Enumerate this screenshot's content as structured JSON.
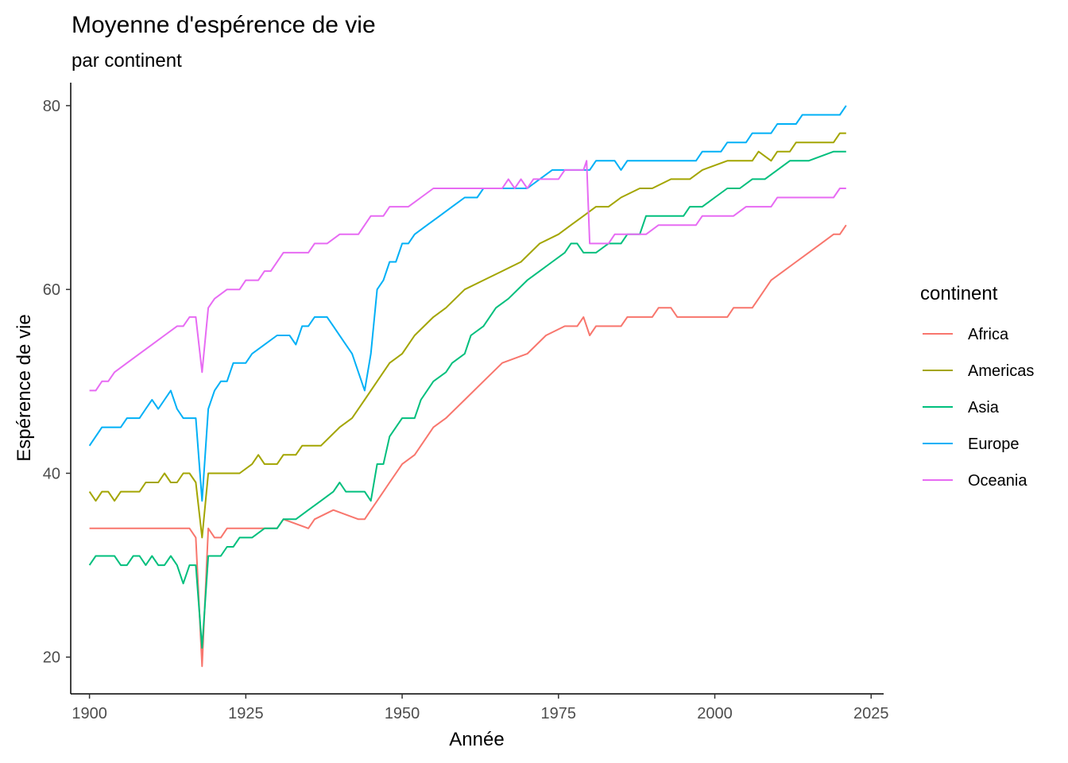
{
  "chart_data": {
    "type": "line",
    "title": "Moyenne d'espérence de vie",
    "subtitle": "par continent",
    "xlabel": "Année",
    "ylabel": "Espérence de vie",
    "xlim": [
      1897,
      2027
    ],
    "ylim": [
      16,
      82.5
    ],
    "x_ticks": [
      1900,
      1925,
      1950,
      1975,
      2000,
      2025
    ],
    "y_ticks": [
      20,
      40,
      60,
      80
    ],
    "grid": false,
    "legend": {
      "title": "continent",
      "position": "right"
    },
    "series": [
      {
        "name": "Africa",
        "color": "#F8766D",
        "points": [
          [
            1900,
            34
          ],
          [
            1916,
            34
          ],
          [
            1917,
            33
          ],
          [
            1918,
            19
          ],
          [
            1919,
            34
          ],
          [
            1920,
            33
          ],
          [
            1921,
            33
          ],
          [
            1922,
            34
          ],
          [
            1930,
            34
          ],
          [
            1931,
            35
          ],
          [
            1935,
            34
          ],
          [
            1936,
            35
          ],
          [
            1939,
            36
          ],
          [
            1943,
            35
          ],
          [
            1944,
            35
          ],
          [
            1945,
            36
          ],
          [
            1946,
            37
          ],
          [
            1947,
            38
          ],
          [
            1948,
            39
          ],
          [
            1950,
            41
          ],
          [
            1952,
            42
          ],
          [
            1955,
            45
          ],
          [
            1957,
            46
          ],
          [
            1960,
            48
          ],
          [
            1963,
            50
          ],
          [
            1966,
            52
          ],
          [
            1970,
            53
          ],
          [
            1973,
            55
          ],
          [
            1976,
            56
          ],
          [
            1978,
            56
          ],
          [
            1979,
            57
          ],
          [
            1980,
            55
          ],
          [
            1981,
            56
          ],
          [
            1985,
            56
          ],
          [
            1986,
            57
          ],
          [
            1990,
            57
          ],
          [
            1991,
            58
          ],
          [
            1993,
            58
          ],
          [
            1994,
            57
          ],
          [
            2002,
            57
          ],
          [
            2003,
            58
          ],
          [
            2006,
            58
          ],
          [
            2007,
            59
          ],
          [
            2009,
            61
          ],
          [
            2011,
            62
          ],
          [
            2013,
            63
          ],
          [
            2015,
            64
          ],
          [
            2017,
            65
          ],
          [
            2019,
            66
          ],
          [
            2020,
            66
          ],
          [
            2021,
            67
          ]
        ]
      },
      {
        "name": "Americas",
        "color": "#A3A500",
        "points": [
          [
            1900,
            38
          ],
          [
            1901,
            37
          ],
          [
            1902,
            38
          ],
          [
            1903,
            38
          ],
          [
            1904,
            37
          ],
          [
            1905,
            38
          ],
          [
            1908,
            38
          ],
          [
            1909,
            39
          ],
          [
            1911,
            39
          ],
          [
            1912,
            40
          ],
          [
            1913,
            39
          ],
          [
            1914,
            39
          ],
          [
            1915,
            40
          ],
          [
            1916,
            40
          ],
          [
            1917,
            39
          ],
          [
            1918,
            33
          ],
          [
            1919,
            40
          ],
          [
            1924,
            40
          ],
          [
            1926,
            41
          ],
          [
            1927,
            42
          ],
          [
            1928,
            41
          ],
          [
            1930,
            41
          ],
          [
            1931,
            42
          ],
          [
            1933,
            42
          ],
          [
            1934,
            43
          ],
          [
            1937,
            43
          ],
          [
            1940,
            45
          ],
          [
            1942,
            46
          ],
          [
            1944,
            48
          ],
          [
            1946,
            50
          ],
          [
            1948,
            52
          ],
          [
            1950,
            53
          ],
          [
            1952,
            55
          ],
          [
            1955,
            57
          ],
          [
            1957,
            58
          ],
          [
            1960,
            60
          ],
          [
            1963,
            61
          ],
          [
            1966,
            62
          ],
          [
            1969,
            63
          ],
          [
            1972,
            65
          ],
          [
            1975,
            66
          ],
          [
            1977,
            67
          ],
          [
            1979,
            68
          ],
          [
            1981,
            69
          ],
          [
            1983,
            69
          ],
          [
            1985,
            70
          ],
          [
            1988,
            71
          ],
          [
            1990,
            71
          ],
          [
            1993,
            72
          ],
          [
            1996,
            72
          ],
          [
            1998,
            73
          ],
          [
            2002,
            74
          ],
          [
            2006,
            74
          ],
          [
            2007,
            75
          ],
          [
            2009,
            74
          ],
          [
            2010,
            75
          ],
          [
            2012,
            75
          ],
          [
            2013,
            76
          ],
          [
            2015,
            76
          ],
          [
            2019,
            76
          ],
          [
            2020,
            77
          ],
          [
            2021,
            77
          ]
        ]
      },
      {
        "name": "Asia",
        "color": "#00BF7D",
        "points": [
          [
            1900,
            30
          ],
          [
            1901,
            31
          ],
          [
            1904,
            31
          ],
          [
            1905,
            30
          ],
          [
            1906,
            30
          ],
          [
            1907,
            31
          ],
          [
            1908,
            31
          ],
          [
            1909,
            30
          ],
          [
            1910,
            31
          ],
          [
            1911,
            30
          ],
          [
            1912,
            30
          ],
          [
            1913,
            31
          ],
          [
            1914,
            30
          ],
          [
            1915,
            28
          ],
          [
            1916,
            30
          ],
          [
            1917,
            30
          ],
          [
            1918,
            21
          ],
          [
            1919,
            31
          ],
          [
            1921,
            31
          ],
          [
            1922,
            32
          ],
          [
            1923,
            32
          ],
          [
            1924,
            33
          ],
          [
            1926,
            33
          ],
          [
            1928,
            34
          ],
          [
            1930,
            34
          ],
          [
            1931,
            35
          ],
          [
            1933,
            35
          ],
          [
            1935,
            36
          ],
          [
            1937,
            37
          ],
          [
            1939,
            38
          ],
          [
            1940,
            39
          ],
          [
            1941,
            38
          ],
          [
            1943,
            38
          ],
          [
            1944,
            38
          ],
          [
            1945,
            37
          ],
          [
            1946,
            41
          ],
          [
            1947,
            41
          ],
          [
            1948,
            44
          ],
          [
            1950,
            46
          ],
          [
            1952,
            46
          ],
          [
            1953,
            48
          ],
          [
            1955,
            50
          ],
          [
            1957,
            51
          ],
          [
            1958,
            52
          ],
          [
            1960,
            53
          ],
          [
            1961,
            55
          ],
          [
            1963,
            56
          ],
          [
            1965,
            58
          ],
          [
            1967,
            59
          ],
          [
            1970,
            61
          ],
          [
            1972,
            62
          ],
          [
            1974,
            63
          ],
          [
            1976,
            64
          ],
          [
            1977,
            65
          ],
          [
            1978,
            65
          ],
          [
            1979,
            64
          ],
          [
            1981,
            64
          ],
          [
            1983,
            65
          ],
          [
            1985,
            65
          ],
          [
            1986,
            66
          ],
          [
            1988,
            66
          ],
          [
            1989,
            68
          ],
          [
            1995,
            68
          ],
          [
            1996,
            69
          ],
          [
            1998,
            69
          ],
          [
            2000,
            70
          ],
          [
            2002,
            71
          ],
          [
            2004,
            71
          ],
          [
            2006,
            72
          ],
          [
            2008,
            72
          ],
          [
            2010,
            73
          ],
          [
            2012,
            74
          ],
          [
            2015,
            74
          ],
          [
            2019,
            75
          ],
          [
            2021,
            75
          ]
        ]
      },
      {
        "name": "Europe",
        "color": "#00B0F6",
        "points": [
          [
            1900,
            43
          ],
          [
            1902,
            45
          ],
          [
            1905,
            45
          ],
          [
            1906,
            46
          ],
          [
            1907,
            46
          ],
          [
            1908,
            46
          ],
          [
            1909,
            47
          ],
          [
            1910,
            48
          ],
          [
            1911,
            47
          ],
          [
            1912,
            48
          ],
          [
            1913,
            49
          ],
          [
            1914,
            47
          ],
          [
            1915,
            46
          ],
          [
            1917,
            46
          ],
          [
            1918,
            37
          ],
          [
            1919,
            47
          ],
          [
            1920,
            49
          ],
          [
            1921,
            50
          ],
          [
            1922,
            50
          ],
          [
            1923,
            52
          ],
          [
            1925,
            52
          ],
          [
            1926,
            53
          ],
          [
            1928,
            54
          ],
          [
            1930,
            55
          ],
          [
            1932,
            55
          ],
          [
            1933,
            54
          ],
          [
            1934,
            56
          ],
          [
            1935,
            56
          ],
          [
            1936,
            57
          ],
          [
            1938,
            57
          ],
          [
            1939,
            56
          ],
          [
            1941,
            54
          ],
          [
            1942,
            53
          ],
          [
            1943,
            51
          ],
          [
            1944,
            49
          ],
          [
            1945,
            53
          ],
          [
            1946,
            60
          ],
          [
            1947,
            61
          ],
          [
            1948,
            63
          ],
          [
            1949,
            63
          ],
          [
            1950,
            65
          ],
          [
            1951,
            65
          ],
          [
            1952,
            66
          ],
          [
            1954,
            67
          ],
          [
            1956,
            68
          ],
          [
            1958,
            69
          ],
          [
            1960,
            70
          ],
          [
            1962,
            70
          ],
          [
            1963,
            71
          ],
          [
            1970,
            71
          ],
          [
            1972,
            72
          ],
          [
            1974,
            73
          ],
          [
            1979,
            73
          ],
          [
            1980,
            73
          ],
          [
            1981,
            74
          ],
          [
            1984,
            74
          ],
          [
            1985,
            73
          ],
          [
            1986,
            74
          ],
          [
            1997,
            74
          ],
          [
            1998,
            75
          ],
          [
            2001,
            75
          ],
          [
            2002,
            76
          ],
          [
            2005,
            76
          ],
          [
            2006,
            77
          ],
          [
            2009,
            77
          ],
          [
            2010,
            78
          ],
          [
            2013,
            78
          ],
          [
            2014,
            79
          ],
          [
            2020,
            79
          ],
          [
            2021,
            80
          ]
        ]
      },
      {
        "name": "Oceania",
        "color": "#E76BF3",
        "points": [
          [
            1900,
            49
          ],
          [
            1901,
            49
          ],
          [
            1902,
            50
          ],
          [
            1903,
            50
          ],
          [
            1904,
            51
          ],
          [
            1906,
            52
          ],
          [
            1908,
            53
          ],
          [
            1910,
            54
          ],
          [
            1912,
            55
          ],
          [
            1914,
            56
          ],
          [
            1915,
            56
          ],
          [
            1916,
            57
          ],
          [
            1917,
            57
          ],
          [
            1918,
            51
          ],
          [
            1919,
            58
          ],
          [
            1920,
            59
          ],
          [
            1922,
            60
          ],
          [
            1924,
            60
          ],
          [
            1925,
            61
          ],
          [
            1927,
            61
          ],
          [
            1928,
            62
          ],
          [
            1929,
            62
          ],
          [
            1931,
            64
          ],
          [
            1935,
            64
          ],
          [
            1936,
            65
          ],
          [
            1938,
            65
          ],
          [
            1940,
            66
          ],
          [
            1943,
            66
          ],
          [
            1945,
            68
          ],
          [
            1947,
            68
          ],
          [
            1948,
            69
          ],
          [
            1951,
            69
          ],
          [
            1953,
            70
          ],
          [
            1955,
            71
          ],
          [
            1966,
            71
          ],
          [
            1967,
            72
          ],
          [
            1968,
            71
          ],
          [
            1969,
            72
          ],
          [
            1970,
            71
          ],
          [
            1971,
            72
          ],
          [
            1975,
            72
          ],
          [
            1976,
            73
          ],
          [
            1979,
            73
          ],
          [
            1979.5,
            74
          ],
          [
            1980,
            65
          ],
          [
            1983,
            65
          ],
          [
            1984,
            66
          ],
          [
            1989,
            66
          ],
          [
            1991,
            67
          ],
          [
            1993,
            67
          ],
          [
            1997,
            67
          ],
          [
            1998,
            68
          ],
          [
            2003,
            68
          ],
          [
            2005,
            69
          ],
          [
            2009,
            69
          ],
          [
            2010,
            70
          ],
          [
            2019,
            70
          ],
          [
            2020,
            71
          ],
          [
            2021,
            71
          ]
        ]
      }
    ]
  }
}
